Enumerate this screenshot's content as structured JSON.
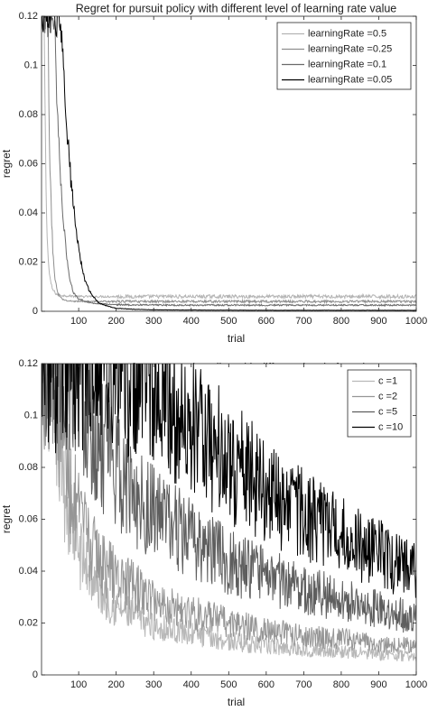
{
  "chart_data": [
    {
      "type": "line",
      "title": "Regret for pursuit policy with different level of learning rate value",
      "xlabel": "trial",
      "ylabel": "regret",
      "xlim": [
        1,
        1000
      ],
      "ylim": [
        0,
        0.12
      ],
      "x_ticks": [
        100,
        200,
        300,
        400,
        500,
        600,
        700,
        800,
        900,
        1000
      ],
      "y_ticks": [
        0,
        0.02,
        0.04,
        0.06,
        0.08,
        0.1,
        0.12
      ],
      "y_tick_labels": [
        "0",
        "0.02",
        "0.04",
        "0.06",
        "0.08",
        "0.1",
        "0.12"
      ],
      "legend_position": "top-right",
      "series": [
        {
          "name": "learningRate =0.5",
          "color": "#b4b4b4",
          "x": [
            1,
            8,
            12,
            16,
            20,
            25,
            30,
            40,
            50,
            100,
            300,
            600,
            1000
          ],
          "y": [
            0.12,
            0.12,
            0.06,
            0.03,
            0.018,
            0.012,
            0.009,
            0.007,
            0.0065,
            0.006,
            0.006,
            0.006,
            0.006
          ]
        },
        {
          "name": "learningRate =0.25",
          "color": "#8e8e8e",
          "x": [
            1,
            18,
            22,
            27,
            32,
            38,
            45,
            55,
            70,
            100,
            300,
            600,
            1000
          ],
          "y": [
            0.12,
            0.12,
            0.07,
            0.04,
            0.022,
            0.012,
            0.007,
            0.005,
            0.0042,
            0.004,
            0.004,
            0.004,
            0.004
          ]
        },
        {
          "name": "learningRate =0.1",
          "color": "#6a6a6a",
          "x": [
            1,
            36,
            42,
            50,
            58,
            66,
            75,
            85,
            100,
            130,
            160,
            200,
            300,
            600,
            1000
          ],
          "y": [
            0.12,
            0.12,
            0.085,
            0.06,
            0.04,
            0.025,
            0.014,
            0.008,
            0.005,
            0.0035,
            0.003,
            0.0027,
            0.0025,
            0.0025,
            0.0025
          ]
        },
        {
          "name": "learningRate =0.05",
          "color": "#000000",
          "x": [
            1,
            52,
            56,
            60,
            65,
            70,
            75,
            80,
            85,
            90,
            95,
            100,
            105,
            110,
            115,
            120,
            130,
            140,
            150,
            160,
            180,
            200,
            250,
            300,
            400,
            600,
            1000
          ],
          "y": [
            0.12,
            0.12,
            0.105,
            0.095,
            0.085,
            0.073,
            0.062,
            0.052,
            0.044,
            0.037,
            0.031,
            0.026,
            0.021,
            0.017,
            0.014,
            0.011,
            0.008,
            0.006,
            0.004,
            0.003,
            0.002,
            0.0012,
            0.0008,
            0.0006,
            0.0005,
            0.0004,
            0.0004
          ]
        }
      ]
    },
    {
      "type": "line",
      "title": "Regret for ϵ n-greedy policy with different level of c value",
      "xlabel": "trial",
      "ylabel": "regret",
      "xlim": [
        1,
        1000
      ],
      "ylim": [
        0,
        0.12
      ],
      "x_ticks": [
        100,
        200,
        300,
        400,
        500,
        600,
        700,
        800,
        900,
        1000
      ],
      "y_ticks": [
        0,
        0.02,
        0.04,
        0.06,
        0.08,
        0.1,
        0.12
      ],
      "y_tick_labels": [
        "0",
        "0.02",
        "0.04",
        "0.06",
        "0.08",
        "0.1",
        "0.12"
      ],
      "legend_position": "top-right",
      "series": [
        {
          "name": "c =1",
          "color": "#b8b8b8",
          "x": [
            1,
            25,
            35,
            50,
            70,
            100,
            150,
            200,
            300,
            400,
            500,
            600,
            700,
            800,
            900,
            1000
          ],
          "y": [
            0.12,
            0.12,
            0.105,
            0.085,
            0.065,
            0.048,
            0.033,
            0.026,
            0.019,
            0.016,
            0.013,
            0.011,
            0.01,
            0.009,
            0.008,
            0.007
          ]
        },
        {
          "name": "c =2",
          "color": "#969696",
          "x": [
            1,
            35,
            50,
            70,
            100,
            150,
            200,
            300,
            400,
            500,
            600,
            700,
            800,
            900,
            1000
          ],
          "y": [
            0.12,
            0.12,
            0.1,
            0.08,
            0.06,
            0.045,
            0.038,
            0.029,
            0.024,
            0.02,
            0.017,
            0.015,
            0.014,
            0.012,
            0.011
          ]
        },
        {
          "name": "c =5",
          "color": "#5e5e5e",
          "x": [
            1,
            90,
            110,
            130,
            150,
            200,
            250,
            300,
            400,
            500,
            600,
            700,
            800,
            900,
            1000
          ],
          "y": [
            0.12,
            0.12,
            0.11,
            0.1,
            0.092,
            0.08,
            0.07,
            0.063,
            0.052,
            0.044,
            0.038,
            0.033,
            0.029,
            0.025,
            0.022
          ]
        },
        {
          "name": "c =10",
          "color": "#000000",
          "x": [
            1,
            290,
            320,
            350,
            400,
            450,
            500,
            550,
            600,
            650,
            700,
            750,
            800,
            850,
            900,
            950,
            1000
          ],
          "y": [
            0.12,
            0.12,
            0.112,
            0.105,
            0.098,
            0.09,
            0.083,
            0.077,
            0.071,
            0.066,
            0.061,
            0.057,
            0.053,
            0.05,
            0.047,
            0.043,
            0.04
          ]
        }
      ]
    }
  ]
}
